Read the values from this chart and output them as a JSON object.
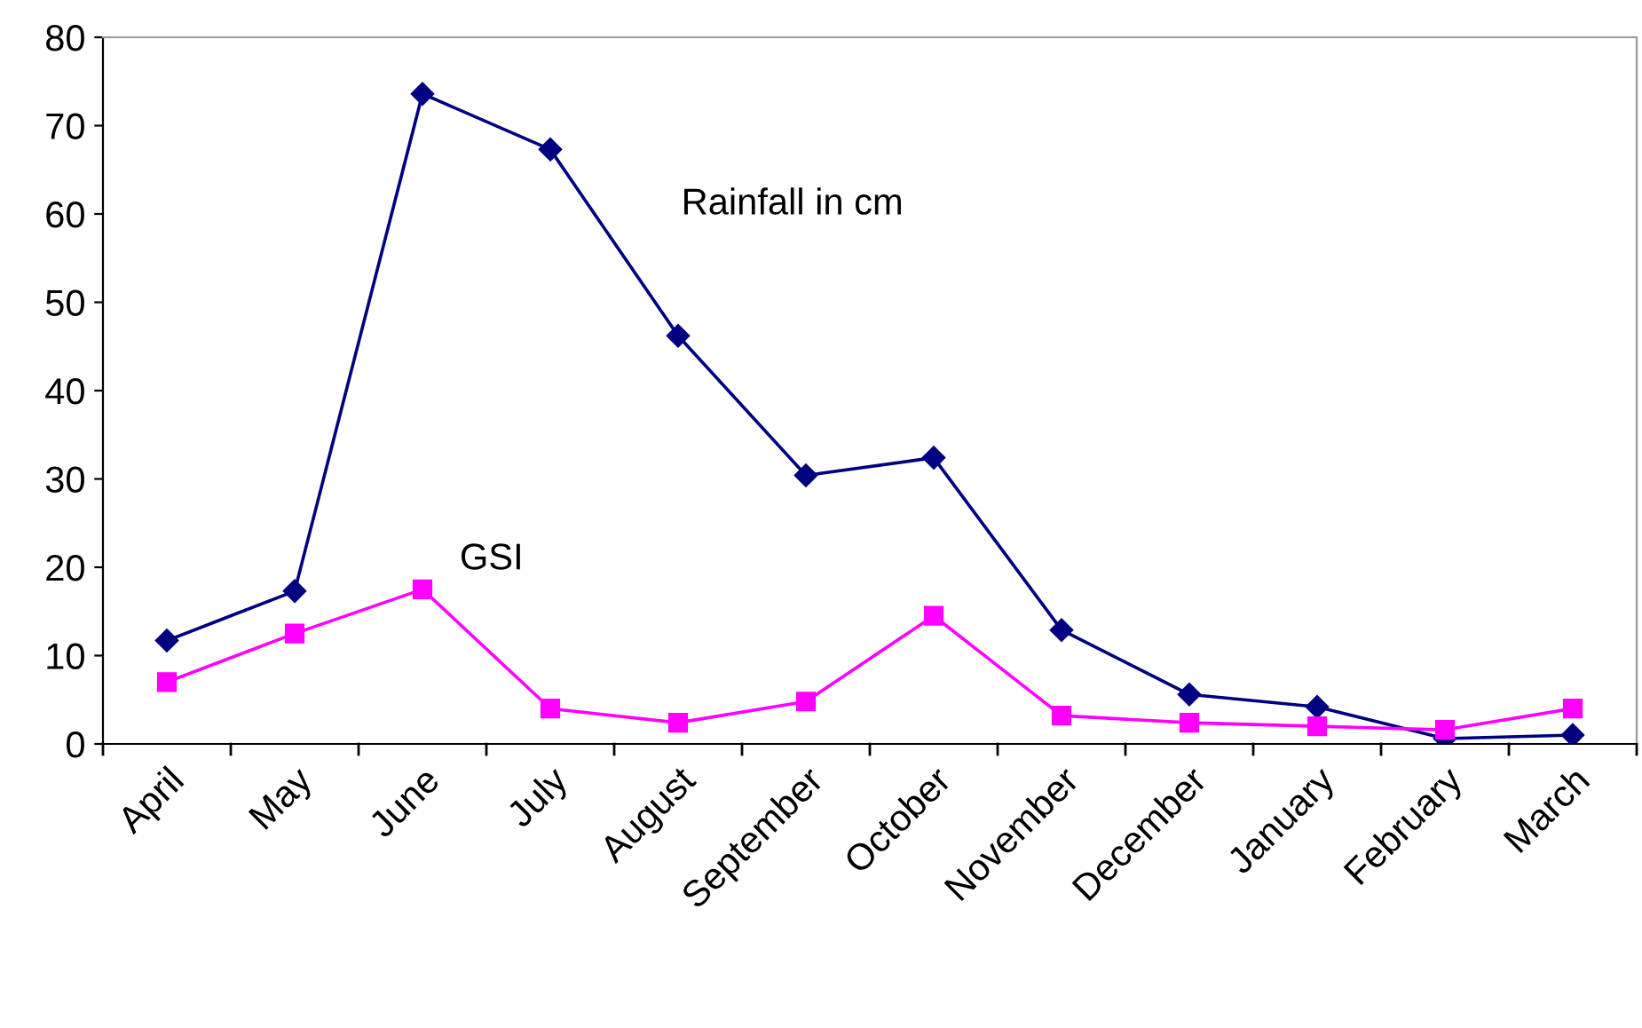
{
  "chart_data": {
    "type": "line",
    "categories": [
      "April",
      "May",
      "June",
      "July",
      "August",
      "September",
      "October",
      "November",
      "December",
      "January",
      "February",
      "March"
    ],
    "series": [
      {
        "name": "Rainfall in cm",
        "color": "#000080",
        "marker": "diamond",
        "values": [
          11.7,
          17.3,
          73.6,
          67.3,
          46.2,
          30.4,
          32.4,
          12.9,
          5.6,
          4.2,
          0.6,
          1.0
        ]
      },
      {
        "name": "GSI",
        "color": "#ff00ff",
        "marker": "square",
        "values": [
          7.0,
          12.5,
          17.5,
          4.0,
          2.4,
          4.8,
          14.5,
          3.2,
          2.4,
          2.0,
          1.6,
          4.0
        ]
      }
    ],
    "ylim": [
      0,
      80
    ],
    "yticks": [
      0,
      10,
      20,
      30,
      40,
      50,
      60,
      70,
      80
    ],
    "grid": false,
    "legend": false
  }
}
